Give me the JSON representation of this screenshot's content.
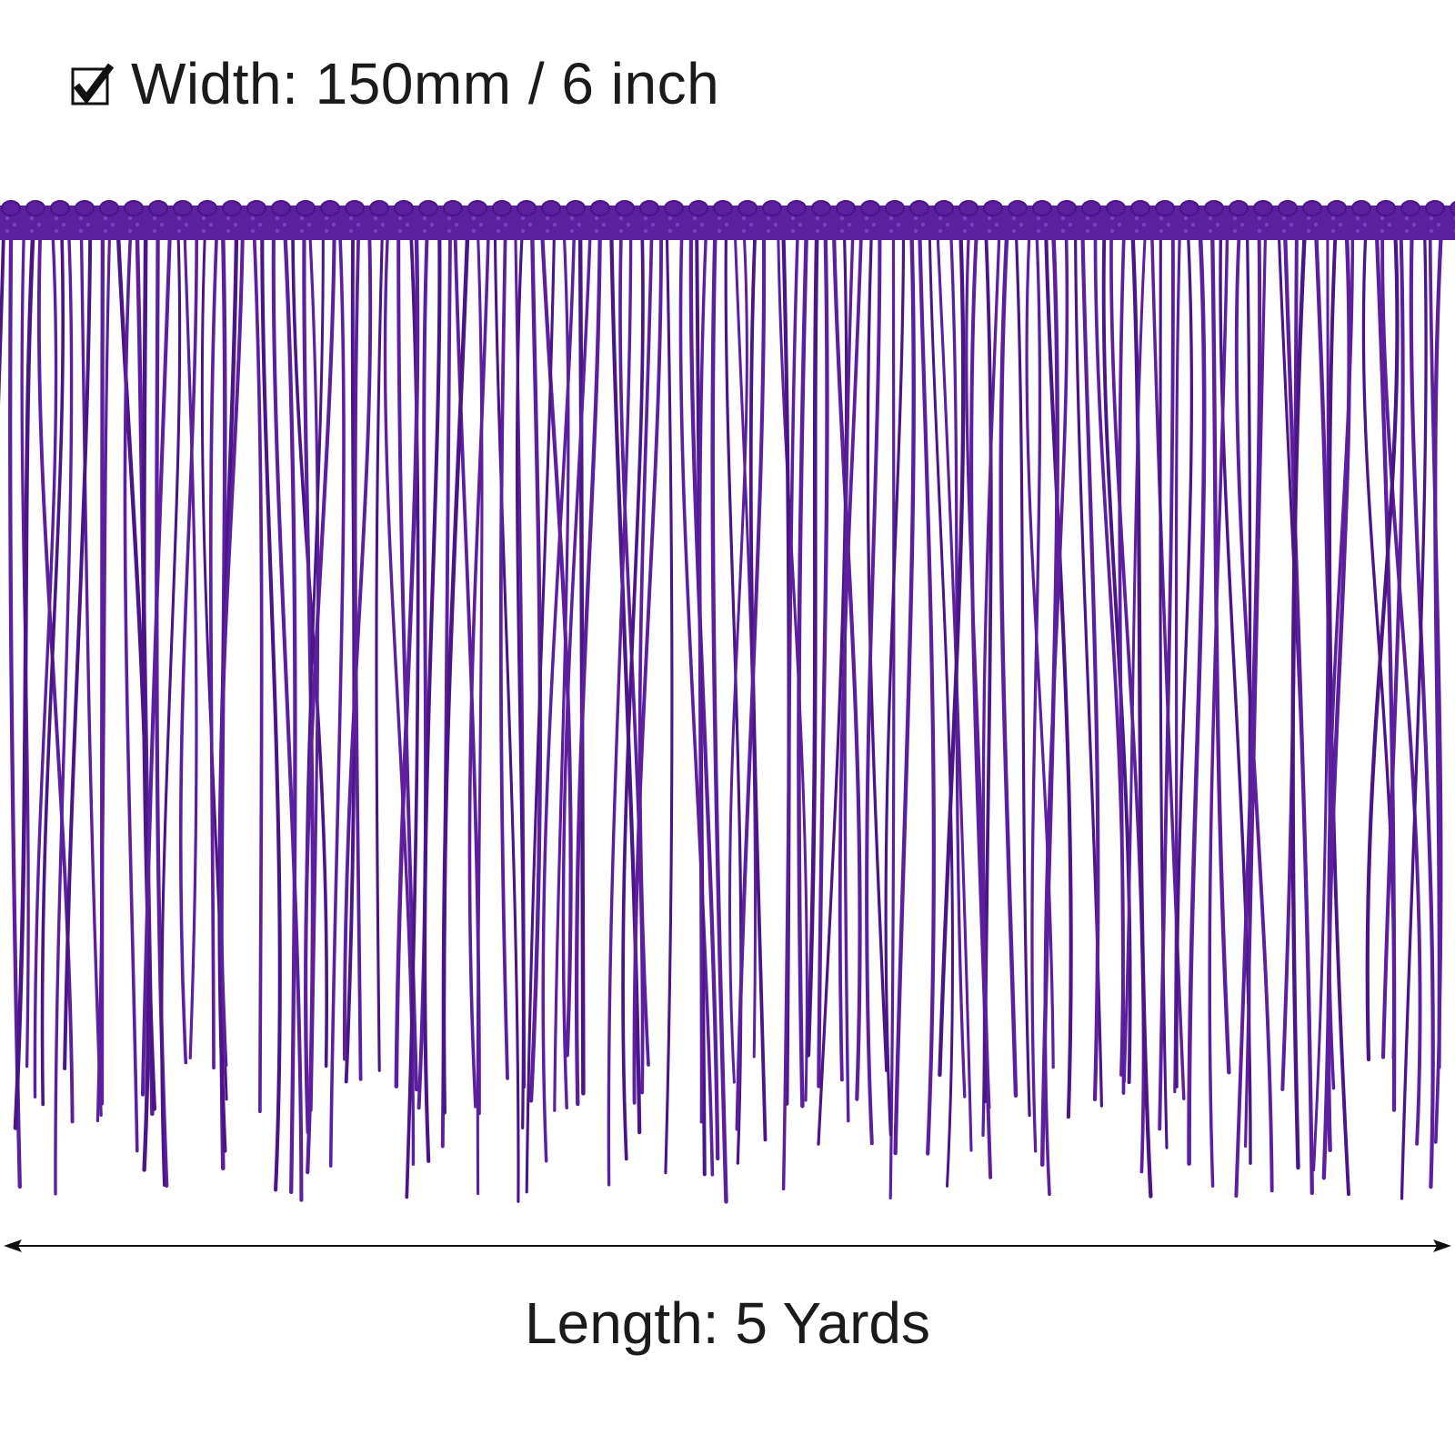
{
  "spec": {
    "width_label": "Width: 150mm / 6 inch",
    "length_label": "Length: 5 Yards"
  },
  "product": {
    "name": "Fringe Trim",
    "color": "#5c1f9e",
    "thread_color": "#4a1586",
    "highlight_color": "#7a3fc0"
  },
  "icons": {
    "check": "checkbox-check-icon",
    "arrow": "double-headed-arrow-icon"
  }
}
